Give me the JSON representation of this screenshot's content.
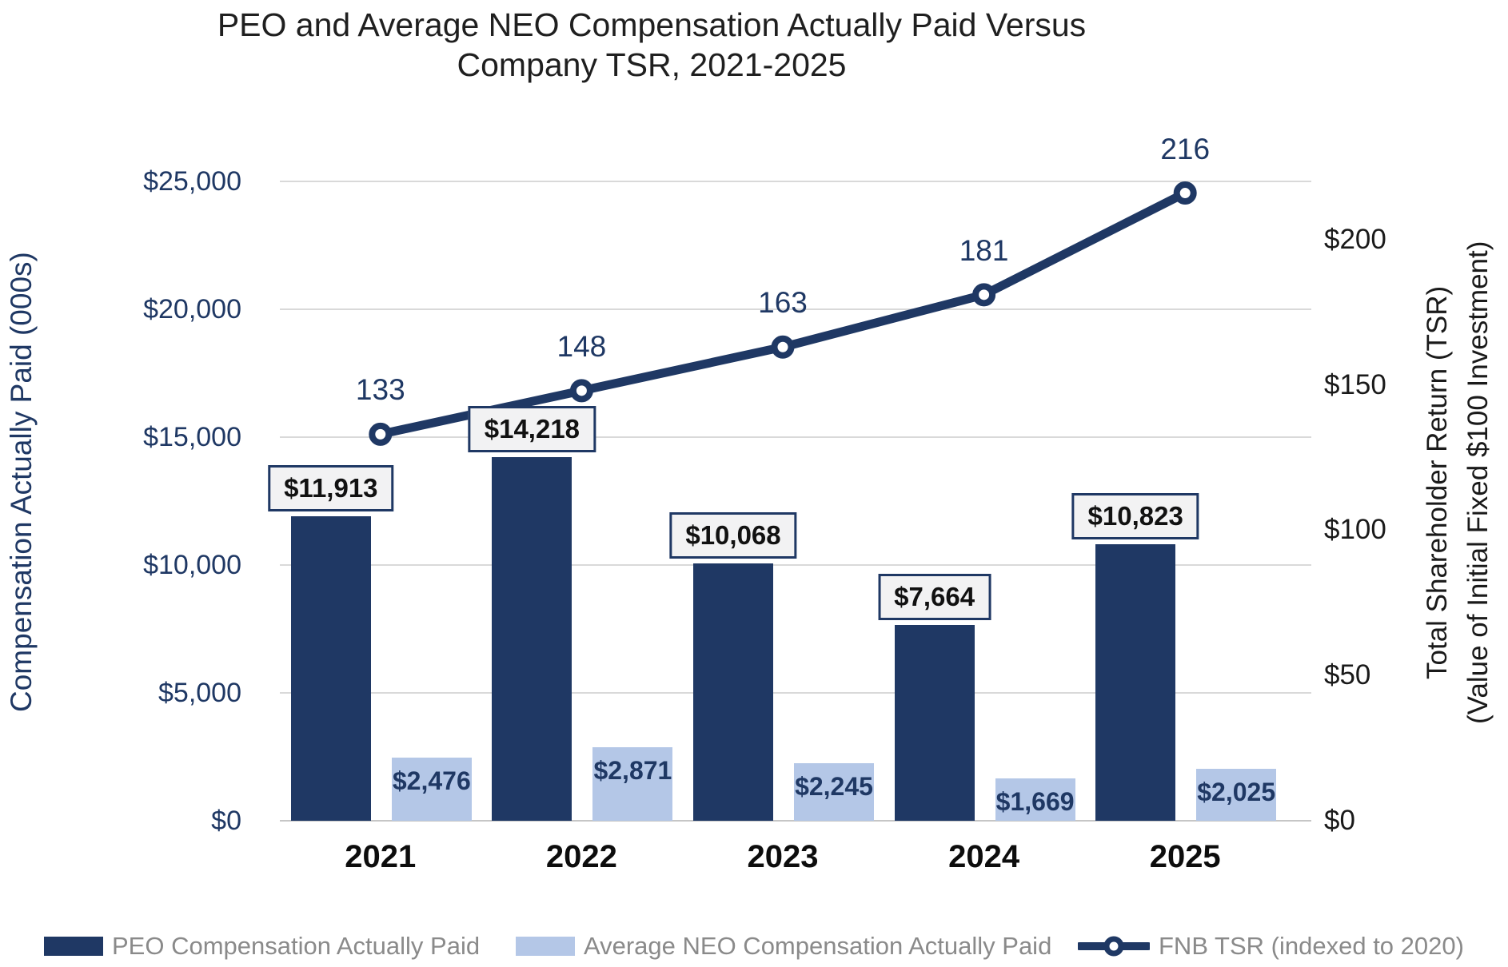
{
  "title": {
    "text_line1": "PEO and Average NEO Compensation Actually Paid Versus",
    "text_line2": "Company TSR, 2021-2025"
  },
  "axes": {
    "left": {
      "title": "Compensation Actually Paid (000s)",
      "ticks": [
        {
          "label": "$25,000",
          "value": 25000
        },
        {
          "label": "$20,000",
          "value": 20000
        },
        {
          "label": "$15,000",
          "value": 15000
        },
        {
          "label": "$10,000",
          "value": 10000
        },
        {
          "label": "$5,000",
          "value": 5000
        },
        {
          "label": "$0",
          "value": 0
        }
      ]
    },
    "right": {
      "title_line1": "Total Shareholder Return (TSR)",
      "title_line2": "(Value of Initial Fixed $100 Investment)",
      "ticks": [
        {
          "label": "$200",
          "value": 200
        },
        {
          "label": "$150",
          "value": 150
        },
        {
          "label": "$100",
          "value": 100
        },
        {
          "label": "$50",
          "value": 50
        },
        {
          "label": "$0",
          "value": 0
        }
      ]
    }
  },
  "chart_data": {
    "type": "combo",
    "categories": [
      "2021",
      "2022",
      "2023",
      "2024",
      "2025"
    ],
    "title": "PEO and Average NEO Compensation Actually Paid Versus Company TSR, 2021-2025",
    "left_axis_label": "Compensation Actually Paid (000s)",
    "right_axis_label": "Total Shareholder Return (TSR) (Value of Initial Fixed $100 Investment)",
    "left_ylim": [
      0,
      25000
    ],
    "right_ylim": [
      0,
      220
    ],
    "grid": true,
    "legend_position": "bottom",
    "series": [
      {
        "name": "PEO Compensation Actually Paid",
        "type": "bar",
        "axis": "left",
        "color": "#1F3864",
        "values": [
          11913,
          14218,
          10068,
          7664,
          10823
        ],
        "data_labels": [
          "$11,913",
          "$14,218",
          "$10,068",
          "$7,664",
          "$10,823"
        ]
      },
      {
        "name": "Average NEO Compensation Actually Paid",
        "type": "bar",
        "axis": "left",
        "color": "#B4C7E7",
        "values": [
          2476,
          2871,
          2245,
          1669,
          2025
        ],
        "data_labels": [
          "$2,476",
          "$2,871",
          "$2,245",
          "$1,669",
          "$2,025"
        ]
      },
      {
        "name": "FNB TSR (indexed to 2020)",
        "type": "line",
        "axis": "right",
        "color": "#1F3864",
        "marker": "open-circle",
        "values": [
          133,
          148,
          163,
          181,
          216
        ],
        "data_labels": [
          "133",
          "148",
          "163",
          "181",
          "216"
        ]
      }
    ]
  },
  "colors": {
    "navy": "#1F3864",
    "light_blue": "#B4C7E7",
    "gridline": "#D9D9D9",
    "baseline": "#C6C6C6",
    "label_box_bg": "#F2F2F3",
    "label_box_border": "#1F3864",
    "legend_text": "#8A8A8A",
    "marker_fill": "#FFFFFF"
  }
}
